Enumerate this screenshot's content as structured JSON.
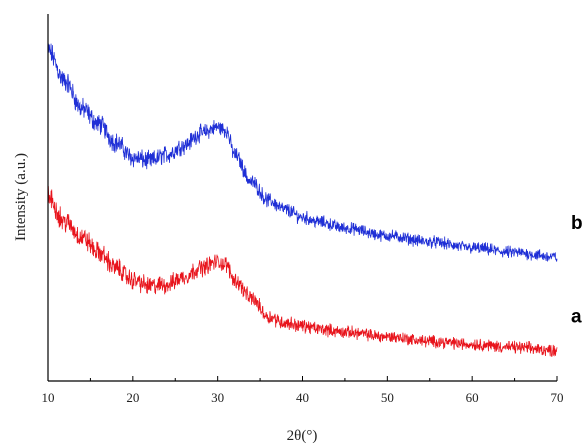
{
  "chart_data": {
    "type": "line",
    "title": "",
    "xlabel": "2θ(°)",
    "ylabel": "Intensity (a.u.)",
    "xlim": [
      10,
      70
    ],
    "x_ticks": [
      10,
      20,
      30,
      40,
      50,
      60,
      70
    ],
    "y_ticks_labeled": false,
    "grid": false,
    "legend": "none",
    "series": [
      {
        "name": "b",
        "color": "#1f2fd6",
        "x": [
          10,
          12,
          14,
          16,
          18,
          20,
          22,
          24,
          26,
          28,
          30,
          31,
          32,
          34,
          36,
          38,
          40,
          42,
          45,
          50,
          55,
          60,
          65,
          70
        ],
        "y": [
          10.8,
          9.8,
          8.9,
          8.4,
          7.8,
          7.3,
          7.2,
          7.4,
          7.7,
          8.1,
          8.3,
          8.2,
          7.4,
          6.5,
          5.9,
          5.6,
          5.35,
          5.2,
          5.0,
          4.75,
          4.55,
          4.35,
          4.2,
          4.05
        ]
      },
      {
        "name": "a",
        "color": "#e8141c",
        "x": [
          10,
          12,
          14,
          16,
          18,
          20,
          22,
          24,
          26,
          28,
          30,
          31,
          32,
          34,
          36,
          38,
          40,
          42,
          45,
          50,
          55,
          60,
          65,
          70
        ],
        "y": [
          6.0,
          5.2,
          4.7,
          4.2,
          3.7,
          3.3,
          3.1,
          3.15,
          3.4,
          3.7,
          3.9,
          3.8,
          3.3,
          2.7,
          2.1,
          1.9,
          1.8,
          1.7,
          1.6,
          1.45,
          1.3,
          1.2,
          1.1,
          1.0
        ]
      }
    ]
  }
}
